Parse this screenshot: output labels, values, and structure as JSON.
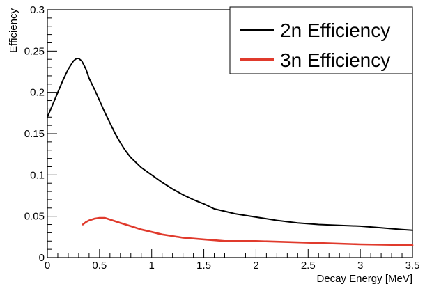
{
  "chart_data": {
    "type": "line",
    "title": "",
    "xlabel": "Decay Energy [MeV]",
    "ylabel": "Efficiency",
    "xlim": [
      0,
      3.5
    ],
    "ylim": [
      0,
      0.3
    ],
    "x_ticks": [
      0,
      0.5,
      1,
      1.5,
      2,
      2.5,
      3,
      3.5
    ],
    "x_tick_labels": [
      "0",
      "0.5",
      "1",
      "1.5",
      "2",
      "2.5",
      "3",
      "3.5"
    ],
    "y_ticks": [
      0,
      0.05,
      0.1,
      0.15,
      0.2,
      0.25,
      0.3
    ],
    "y_tick_labels": [
      "0",
      "0.05",
      "0.1",
      "0.15",
      "0.2",
      "0.25",
      "0.3"
    ],
    "grid": false,
    "legend_position": "top-right",
    "series": [
      {
        "name": "2n Efficiency",
        "color": "#000000",
        "x": [
          0.0,
          0.05,
          0.1,
          0.15,
          0.2,
          0.25,
          0.28,
          0.3,
          0.33,
          0.37,
          0.4,
          0.45,
          0.5,
          0.55,
          0.6,
          0.65,
          0.7,
          0.75,
          0.8,
          0.9,
          1.0,
          1.1,
          1.2,
          1.3,
          1.4,
          1.5,
          1.6,
          1.7,
          1.8,
          1.9,
          2.0,
          2.2,
          2.4,
          2.6,
          2.8,
          3.0,
          3.2,
          3.4,
          3.5
        ],
        "y": [
          0.17,
          0.185,
          0.2,
          0.215,
          0.228,
          0.238,
          0.241,
          0.241,
          0.238,
          0.228,
          0.217,
          0.204,
          0.19,
          0.176,
          0.163,
          0.15,
          0.139,
          0.129,
          0.121,
          0.109,
          0.1,
          0.091,
          0.083,
          0.076,
          0.07,
          0.065,
          0.059,
          0.056,
          0.053,
          0.051,
          0.049,
          0.045,
          0.042,
          0.04,
          0.039,
          0.038,
          0.036,
          0.034,
          0.033
        ]
      },
      {
        "name": "3n Efficiency",
        "color": "#e03a2c",
        "x": [
          0.34,
          0.37,
          0.4,
          0.45,
          0.5,
          0.55,
          0.6,
          0.7,
          0.8,
          0.9,
          1.0,
          1.1,
          1.2,
          1.3,
          1.4,
          1.5,
          1.6,
          1.7,
          2.0,
          2.5,
          3.0,
          3.5
        ],
        "y": [
          0.04,
          0.043,
          0.045,
          0.047,
          0.048,
          0.048,
          0.046,
          0.042,
          0.038,
          0.034,
          0.031,
          0.028,
          0.026,
          0.024,
          0.023,
          0.022,
          0.021,
          0.02,
          0.02,
          0.018,
          0.016,
          0.015
        ]
      }
    ]
  }
}
